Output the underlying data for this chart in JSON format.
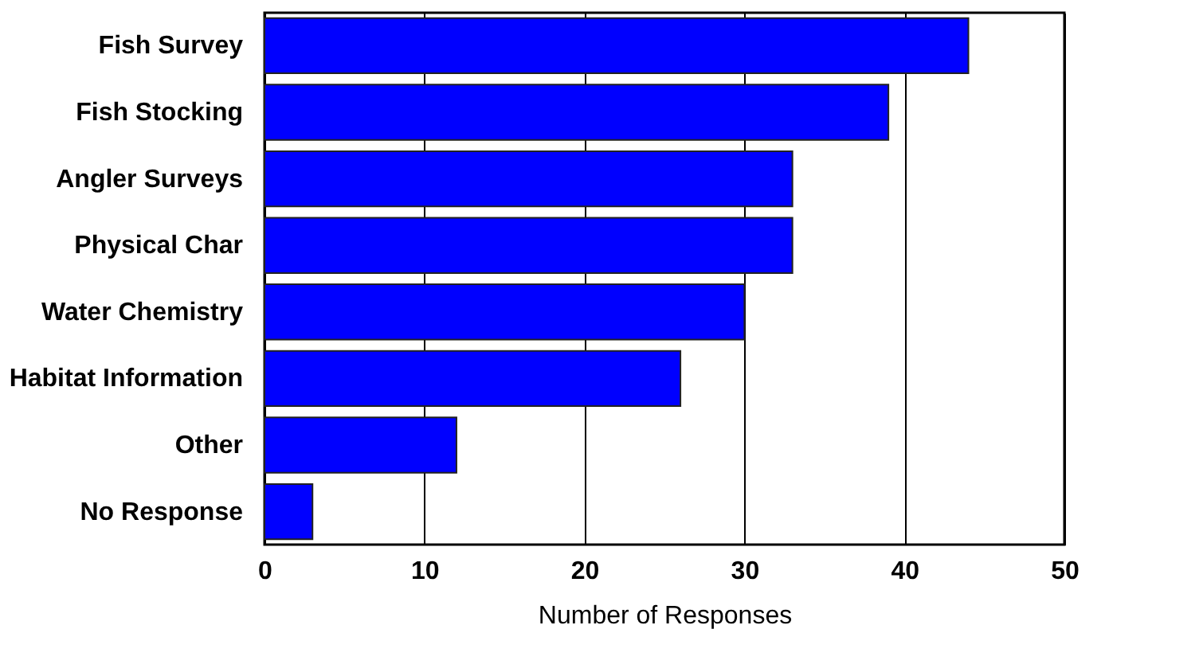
{
  "chart_data": {
    "type": "bar",
    "orientation": "horizontal",
    "xlabel": "Number of Responses",
    "categories": [
      "Fish Survey",
      "Fish Stocking",
      "Angler Surveys",
      "Physical Char",
      "Water Chemistry",
      "Habitat Information",
      "Other",
      "No Response"
    ],
    "values": [
      44,
      39,
      33,
      33,
      30,
      26,
      12,
      3
    ],
    "color": "#0000ff",
    "xlim": [
      0,
      50
    ],
    "xticks": [
      0,
      10,
      20,
      30,
      40,
      50
    ],
    "grid": "x"
  }
}
